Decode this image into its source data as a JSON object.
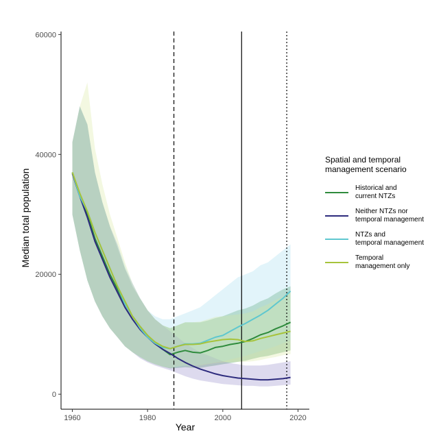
{
  "chart_data": {
    "type": "line",
    "xlabel": "Year",
    "ylabel": "Median total population",
    "xlim": [
      1957,
      2023
    ],
    "ylim": [
      -2500,
      60500
    ],
    "xticks": [
      1960,
      1980,
      2000,
      2020
    ],
    "yticks": [
      0,
      20000,
      40000,
      60000
    ],
    "grid": false,
    "legend_position": "right",
    "legend_title": "Spatial and temporal management scenario",
    "vlines": [
      {
        "x": 1987,
        "style": "dashed"
      },
      {
        "x": 2005,
        "style": "solid"
      },
      {
        "x": 2017,
        "style": "dotted"
      }
    ],
    "x": [
      1960,
      1962,
      1964,
      1966,
      1968,
      1970,
      1972,
      1974,
      1976,
      1978,
      1980,
      1982,
      1984,
      1986,
      1988,
      1990,
      1992,
      1994,
      1996,
      1998,
      2000,
      2002,
      2004,
      2006,
      2008,
      2010,
      2012,
      2014,
      2016,
      2018
    ],
    "series": [
      {
        "name": "Historical and current NTZs",
        "color": "#2e8b3c",
        "fill": "#2e8b3c",
        "values": [
          37000,
          33000,
          30000,
          26000,
          23000,
          20000,
          17500,
          15000,
          13000,
          11300,
          9800,
          8600,
          7500,
          6600,
          7000,
          7300,
          7000,
          6900,
          7300,
          7800,
          8000,
          8300,
          8500,
          8800,
          9300,
          9900,
          10300,
          10900,
          11400,
          12000
        ],
        "lower": [
          30000,
          24000,
          19000,
          15500,
          13000,
          11000,
          9500,
          8000,
          7000,
          6200,
          5500,
          5000,
          4600,
          4300,
          4400,
          4500,
          4400,
          4400,
          4600,
          4800,
          5000,
          5200,
          5400,
          5600,
          5900,
          6200,
          6400,
          6700,
          7000,
          7300
        ],
        "upper": [
          42000,
          48000,
          45000,
          37000,
          32000,
          28000,
          24500,
          21000,
          18000,
          16000,
          14000,
          12500,
          11500,
          11000,
          11500,
          12000,
          12000,
          12000,
          12300,
          12700,
          13000,
          13500,
          14000,
          14300,
          14800,
          15500,
          16000,
          16800,
          17500,
          18000
        ]
      },
      {
        "name": "Neither NTZs nor temporal management",
        "color": "#2c2a7c",
        "fill": "#8f86c8",
        "values": [
          36800,
          33000,
          29500,
          25500,
          22500,
          19500,
          17000,
          14500,
          12500,
          10800,
          9500,
          8400,
          7500,
          6800,
          6000,
          5300,
          4700,
          4200,
          3800,
          3400,
          3100,
          2900,
          2700,
          2600,
          2500,
          2400,
          2400,
          2500,
          2600,
          2800
        ],
        "lower": [
          30000,
          24000,
          19000,
          15500,
          13000,
          11000,
          9500,
          8000,
          7000,
          6000,
          5300,
          4800,
          4400,
          4000,
          3500,
          3000,
          2600,
          2300,
          2100,
          1900,
          1700,
          1600,
          1500,
          1400,
          1400,
          1300,
          1300,
          1400,
          1500,
          1600
        ],
        "upper": [
          42000,
          48000,
          45000,
          37000,
          32000,
          28000,
          25000,
          21000,
          18500,
          16000,
          14000,
          12500,
          11500,
          10500,
          9500,
          8500,
          7700,
          7000,
          6500,
          6000,
          5500,
          5200,
          5000,
          4800,
          4800,
          4800,
          4900,
          5100,
          5300,
          5500
        ]
      },
      {
        "name": "NTZs and temporal management",
        "color": "#5ec7cf",
        "fill": "#9fdcf0",
        "values": [
          37000,
          33000,
          30500,
          27000,
          24000,
          21000,
          18000,
          15000,
          13000,
          11000,
          9500,
          8500,
          7800,
          7600,
          8000,
          8400,
          8400,
          8500,
          9000,
          9500,
          9800,
          10500,
          11200,
          11800,
          12500,
          13200,
          14000,
          15000,
          16000,
          17200
        ],
        "lower": [
          30000,
          24000,
          19000,
          15500,
          13000,
          11000,
          9500,
          8000,
          7000,
          6200,
          5500,
          5000,
          4600,
          4400,
          4500,
          4700,
          4800,
          4900,
          5100,
          5300,
          5500,
          5800,
          6100,
          6400,
          6800,
          7200,
          7600,
          8000,
          8500,
          9000
        ],
        "upper": [
          42000,
          48000,
          45000,
          37000,
          32000,
          28000,
          25000,
          21500,
          18500,
          16000,
          14000,
          13000,
          12500,
          12500,
          13000,
          13500,
          14000,
          14500,
          15500,
          16500,
          17500,
          18500,
          19500,
          20000,
          20500,
          21500,
          22000,
          23000,
          24000,
          25000
        ]
      },
      {
        "name": "Temporal management only",
        "color": "#a6c33a",
        "fill": "#d8e89a",
        "values": [
          37000,
          33500,
          30500,
          27000,
          24000,
          21000,
          18000,
          15500,
          13000,
          11300,
          9800,
          8700,
          8000,
          7600,
          8000,
          8300,
          8300,
          8400,
          8700,
          8900,
          9100,
          9200,
          9100,
          8800,
          8900,
          9300,
          9600,
          9900,
          10200,
          10500
        ],
        "lower": [
          30000,
          24000,
          19000,
          15500,
          13000,
          11000,
          9500,
          8000,
          7000,
          6200,
          5500,
          5000,
          4600,
          4400,
          4600,
          4800,
          4800,
          4800,
          5000,
          5200,
          5300,
          5400,
          5400,
          5400,
          5500,
          5700,
          6000,
          6200,
          6500,
          6700
        ],
        "upper": [
          42000,
          48000,
          52000,
          41000,
          35000,
          30000,
          26000,
          22000,
          18500,
          16000,
          14000,
          12500,
          11500,
          11000,
          11500,
          12000,
          12000,
          12100,
          12500,
          12900,
          13000,
          13200,
          13300,
          13500,
          13800,
          14500,
          15000,
          15700,
          16300,
          17000
        ]
      }
    ]
  },
  "legend": {
    "title": "Spatial and temporal\nmanagement scenario",
    "items": [
      {
        "label": "Historical and\ncurrent NTZs"
      },
      {
        "label": "Neither NTZs nor\ntemporal management"
      },
      {
        "label": "NTZs and\ntemporal management"
      },
      {
        "label": "Temporal\nmanagement only"
      }
    ]
  }
}
